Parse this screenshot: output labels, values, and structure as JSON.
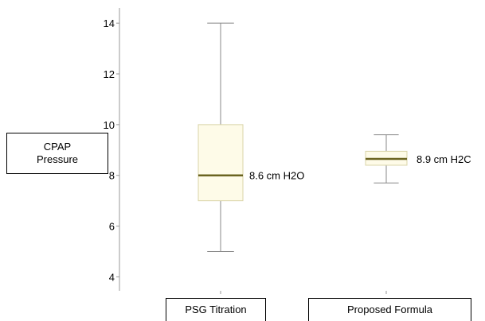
{
  "chart_data": {
    "type": "box",
    "ylabel": "CPAP\nPressure",
    "categories": [
      "PSG Titration",
      "Proposed Formula"
    ],
    "yticks": [
      4,
      6,
      8,
      10,
      12,
      14
    ],
    "ylim": [
      3.45,
      14.6
    ],
    "grid": false,
    "boxes": [
      {
        "category": "PSG Titration",
        "min": 5,
        "q1": 7,
        "median": 8,
        "q3": 10,
        "max": 14,
        "annotation": "8.6 cm H2O"
      },
      {
        "category": "Proposed Formula",
        "min": 7.7,
        "q1": 8.4,
        "median": 8.65,
        "q3": 8.95,
        "max": 9.6,
        "annotation": "8.9 cm H2C"
      }
    ],
    "colors": {
      "box_fill": "#fefbe8",
      "box_stroke": "#d9d4a8",
      "median": "#6b6420",
      "whisker": "#888888",
      "axis": "#999999"
    }
  }
}
